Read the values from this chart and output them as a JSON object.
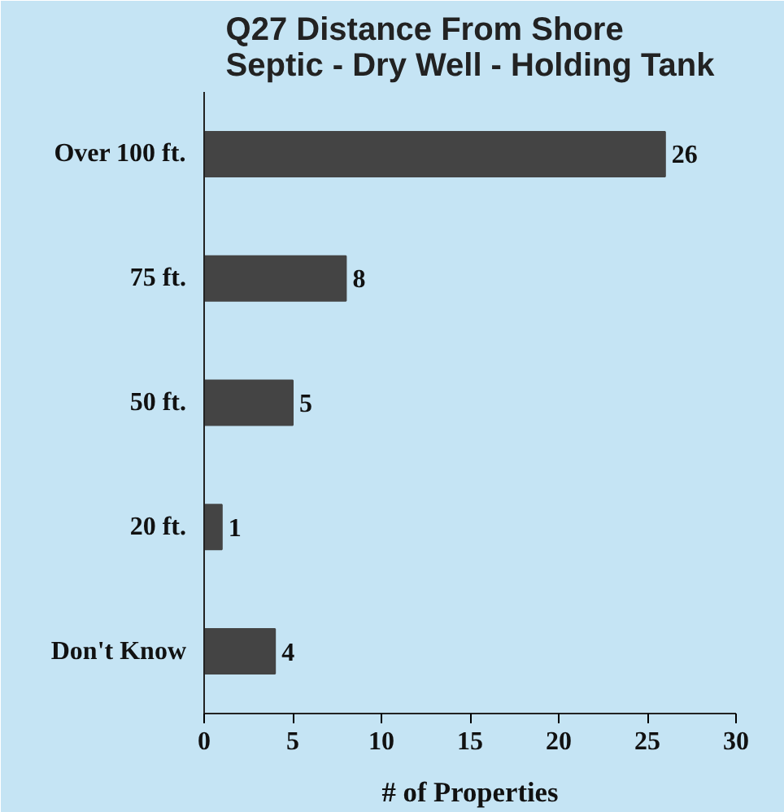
{
  "chart_data": {
    "type": "bar",
    "orientation": "horizontal",
    "title": "Q27    Distance From Shore\nSeptic - Dry Well - Holding Tank",
    "xlabel": "# of Properties",
    "categories": [
      "Over 100 ft.",
      "75 ft.",
      "50 ft.",
      "20 ft.",
      "Don't Know"
    ],
    "values": [
      26,
      8,
      5,
      1,
      4
    ],
    "color": "#444444",
    "data_labels": true,
    "xlim": [
      0,
      30
    ],
    "xticks": [
      0,
      5,
      10,
      15,
      20,
      25,
      30
    ],
    "grid": false
  }
}
